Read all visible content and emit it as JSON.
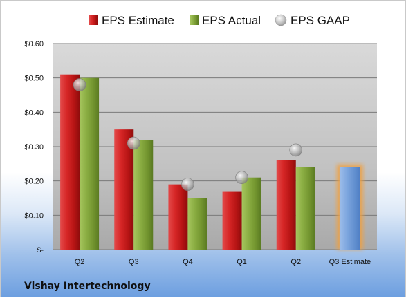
{
  "chart_data": {
    "type": "bar",
    "title": "",
    "xlabel": "",
    "ylabel": "",
    "ylim": [
      0,
      0.6
    ],
    "y_ticks": [
      {
        "value": 0.6,
        "label": "$0.60"
      },
      {
        "value": 0.5,
        "label": "$0.50"
      },
      {
        "value": 0.4,
        "label": "$0.40"
      },
      {
        "value": 0.3,
        "label": "$0.30"
      },
      {
        "value": 0.2,
        "label": "$0.20"
      },
      {
        "value": 0.1,
        "label": "$0.10"
      },
      {
        "value": 0.0,
        "label": "$-"
      }
    ],
    "categories": [
      "Q2",
      "Q3",
      "Q4",
      "Q1",
      "Q2",
      "Q3 Estimate"
    ],
    "series": [
      {
        "name": "EPS Estimate",
        "color": "#c21f1f",
        "marker": "bar",
        "values": [
          0.51,
          0.35,
          0.19,
          0.17,
          0.26,
          null
        ]
      },
      {
        "name": "EPS Actual",
        "color": "#7fa23a",
        "marker": "bar",
        "values": [
          0.5,
          0.32,
          0.15,
          0.21,
          0.24,
          null
        ]
      },
      {
        "name": "EPS GAAP",
        "color": "#a8a8a8",
        "marker": "circle",
        "values": [
          0.48,
          0.31,
          0.19,
          0.21,
          0.29,
          null
        ]
      },
      {
        "name": "",
        "color": "#6f9ad6",
        "highlight_color": "#f0a040",
        "marker": "bar",
        "values": [
          null,
          null,
          null,
          null,
          null,
          0.24
        ]
      }
    ],
    "grid": true,
    "legend_position": "top",
    "plot_background": "#c4c4c4"
  },
  "footer": {
    "company": "Vishay Intertechnology"
  }
}
